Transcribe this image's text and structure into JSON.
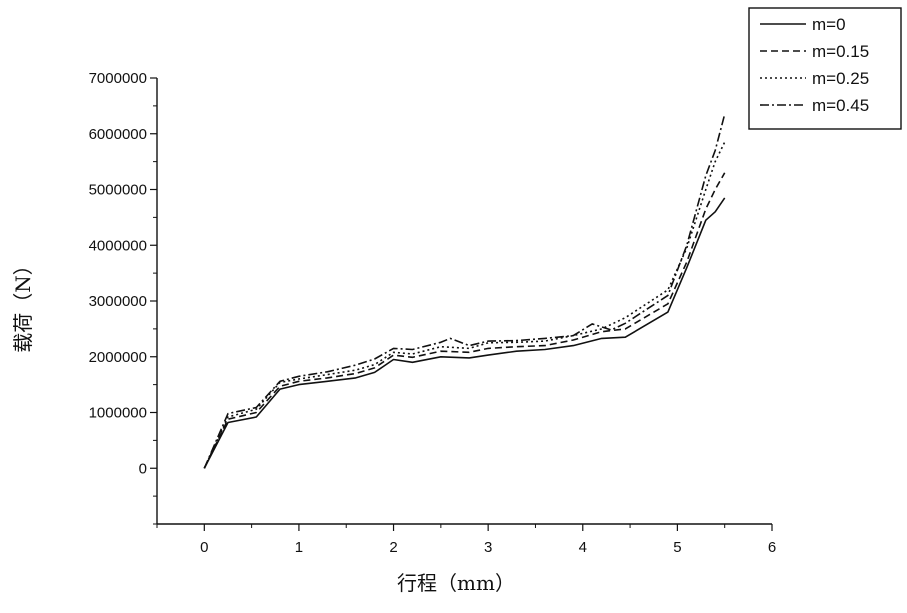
{
  "chart_data": {
    "type": "line",
    "title": "",
    "xlabel": "行程（mm）",
    "ylabel": "载荷（N）",
    "xlim": [
      -0.5,
      6
    ],
    "ylim": [
      -1000000,
      7000000
    ],
    "x_ticks": [
      0,
      1,
      2,
      3,
      4,
      5,
      6
    ],
    "y_ticks": [
      0,
      1000000,
      2000000,
      3000000,
      4000000,
      5000000,
      6000000,
      7000000
    ],
    "x_tick_labels": [
      "0",
      "1",
      "2",
      "3",
      "4",
      "5",
      "6"
    ],
    "y_tick_labels": [
      "0",
      "1000000",
      "2000000",
      "3000000",
      "4000000",
      "5000000",
      "6000000",
      "7000000"
    ],
    "grid": false,
    "legend_position": "top-right",
    "series": [
      {
        "name": "m=0",
        "style": "solid",
        "x": [
          0,
          0.25,
          0.55,
          0.8,
          1.0,
          1.3,
          1.6,
          1.8,
          2.0,
          2.2,
          2.5,
          2.8,
          3.0,
          3.3,
          3.6,
          3.9,
          4.2,
          4.45,
          4.9,
          5.1,
          5.3,
          5.4,
          5.5
        ],
        "y": [
          0,
          820000,
          920000,
          1420000,
          1500000,
          1560000,
          1620000,
          1720000,
          1950000,
          1900000,
          2000000,
          1980000,
          2030000,
          2100000,
          2130000,
          2200000,
          2330000,
          2350000,
          2800000,
          3600000,
          4450000,
          4600000,
          4850000
        ]
      },
      {
        "name": "m=0.15",
        "style": "dashed",
        "x": [
          0,
          0.25,
          0.55,
          0.8,
          1.0,
          1.3,
          1.6,
          1.8,
          2.0,
          2.2,
          2.5,
          2.8,
          3.0,
          3.3,
          3.6,
          3.9,
          4.2,
          4.45,
          4.9,
          5.1,
          5.3,
          5.4,
          5.5
        ],
        "y": [
          0,
          880000,
          1000000,
          1470000,
          1560000,
          1620000,
          1700000,
          1800000,
          2030000,
          1990000,
          2100000,
          2080000,
          2150000,
          2180000,
          2200000,
          2300000,
          2450000,
          2500000,
          2950000,
          3700000,
          4650000,
          5000000,
          5300000
        ]
      },
      {
        "name": "m=0.25",
        "style": "dotted",
        "x": [
          0,
          0.25,
          0.55,
          0.8,
          1.0,
          1.3,
          1.6,
          1.8,
          2.0,
          2.2,
          2.5,
          2.8,
          3.0,
          3.3,
          3.6,
          3.9,
          4.2,
          4.45,
          4.9,
          5.1,
          5.3,
          5.4,
          5.5
        ],
        "y": [
          0,
          920000,
          1060000,
          1540000,
          1600000,
          1680000,
          1760000,
          1860000,
          2080000,
          2050000,
          2180000,
          2150000,
          2250000,
          2260000,
          2280000,
          2380000,
          2500000,
          2700000,
          3200000,
          3950000,
          5000000,
          5500000,
          5850000
        ]
      },
      {
        "name": "m=0.45",
        "style": "dashdot",
        "x": [
          0,
          0.25,
          0.55,
          0.8,
          1.0,
          1.3,
          1.6,
          1.8,
          2.0,
          2.2,
          2.5,
          2.6,
          2.8,
          3.0,
          3.3,
          3.6,
          3.9,
          4.1,
          4.3,
          4.45,
          4.9,
          5.1,
          5.3,
          5.4,
          5.5
        ],
        "y": [
          0,
          980000,
          1090000,
          1560000,
          1650000,
          1730000,
          1850000,
          1960000,
          2150000,
          2130000,
          2260000,
          2330000,
          2200000,
          2280000,
          2290000,
          2330000,
          2380000,
          2590000,
          2480000,
          2600000,
          3100000,
          4000000,
          5250000,
          5700000,
          6350000
        ]
      }
    ]
  }
}
